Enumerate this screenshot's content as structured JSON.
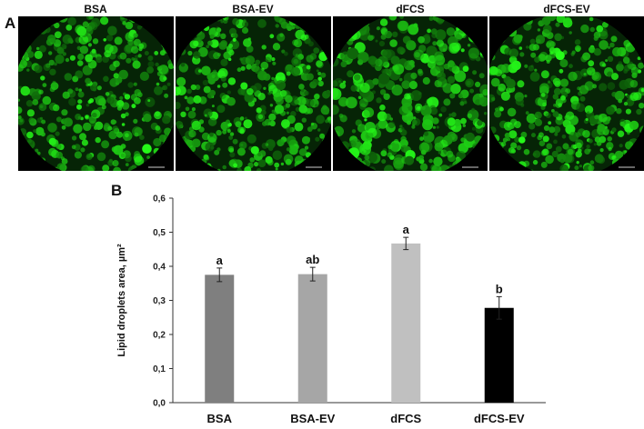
{
  "panel_a": {
    "letter": "A",
    "images": [
      {
        "title": "BSA"
      },
      {
        "title": "BSA-EV"
      },
      {
        "title": "dFCS"
      },
      {
        "title": "dFCS-EV"
      }
    ]
  },
  "panel_b": {
    "letter": "B"
  },
  "chart_data": {
    "type": "bar",
    "categories": [
      "BSA",
      "BSA-EV",
      "dFCS",
      "dFCS-EV"
    ],
    "values": [
      0.375,
      0.377,
      0.467,
      0.278
    ],
    "errors": [
      0.02,
      0.02,
      0.018,
      0.033
    ],
    "significance": [
      "a",
      "ab",
      "a",
      "b"
    ],
    "bar_colors": [
      "#7f7f7f",
      "#a6a6a6",
      "#c0c0c0",
      "#000000"
    ],
    "ylabel": "Lipid droplets area, µm²",
    "ylim": [
      0,
      0.6
    ],
    "yticks": [
      "0,0",
      "0,1",
      "0,2",
      "0,3",
      "0,4",
      "0,5",
      "0,6"
    ],
    "grid": false
  }
}
